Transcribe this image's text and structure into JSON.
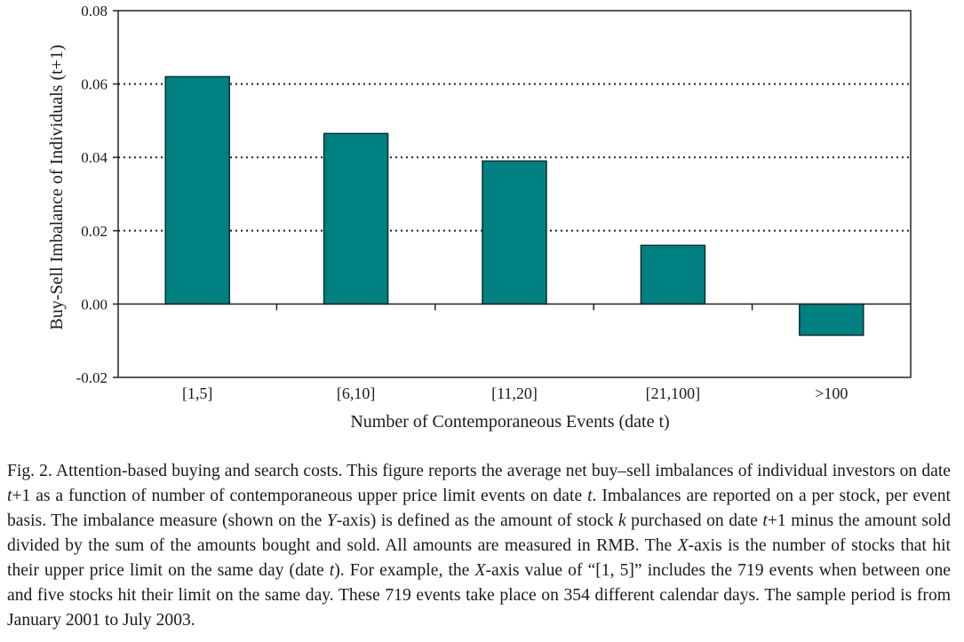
{
  "chart_data": {
    "type": "bar",
    "title": "",
    "xlabel": "Number of Contemporaneous Events (date t)",
    "ylabel": "Buy-Sell Imbalance of Individuals (t+1)",
    "categories": [
      "[1,5]",
      "[6,10]",
      "[11,20]",
      "[21,100]",
      ">100"
    ],
    "values": [
      0.062,
      0.0465,
      0.039,
      0.016,
      -0.0085
    ],
    "ylim": [
      -0.02,
      0.08
    ],
    "yticks": [
      "-0.02",
      "0.00",
      "0.02",
      "0.04",
      "0.06",
      "0.08"
    ],
    "ytick_values": [
      -0.02,
      0.0,
      0.02,
      0.04,
      0.06,
      0.08
    ],
    "grid": "horizontal dotted at 0.02, 0.04, 0.06",
    "bar_color": "#008080",
    "legend": "none"
  },
  "caption": {
    "p1": "Fig. 2. Attention-based buying and search costs. This figure reports the average net buy–sell imbalances of individual investors on date ",
    "v1": "t",
    "p2": "+1 as a function of number of contemporaneous upper price limit events on date ",
    "v2": "t",
    "p3": ". Imbalances are reported on a per stock, per event basis. The imbalance measure (shown on the ",
    "v3": "Y",
    "p4": "-axis) is defined as the amount of stock ",
    "v4": "k",
    "p5": " purchased on date ",
    "v5": "t",
    "p6": "+1 minus the amount sold divided by the sum of the amounts bought and sold. All amounts are measured in RMB. The ",
    "v6": "X",
    "p7": "-axis is the number of stocks that hit their upper price limit on the same day (date ",
    "v7": "t",
    "p8": "). For example, the ",
    "v8": "X",
    "p9": "-axis value of “[1, 5]” includes the 719 events when between one and five stocks hit their limit on the same day. These 719 events take place on 354 different calendar days. The sample period is from January 2001 to July 2003."
  }
}
